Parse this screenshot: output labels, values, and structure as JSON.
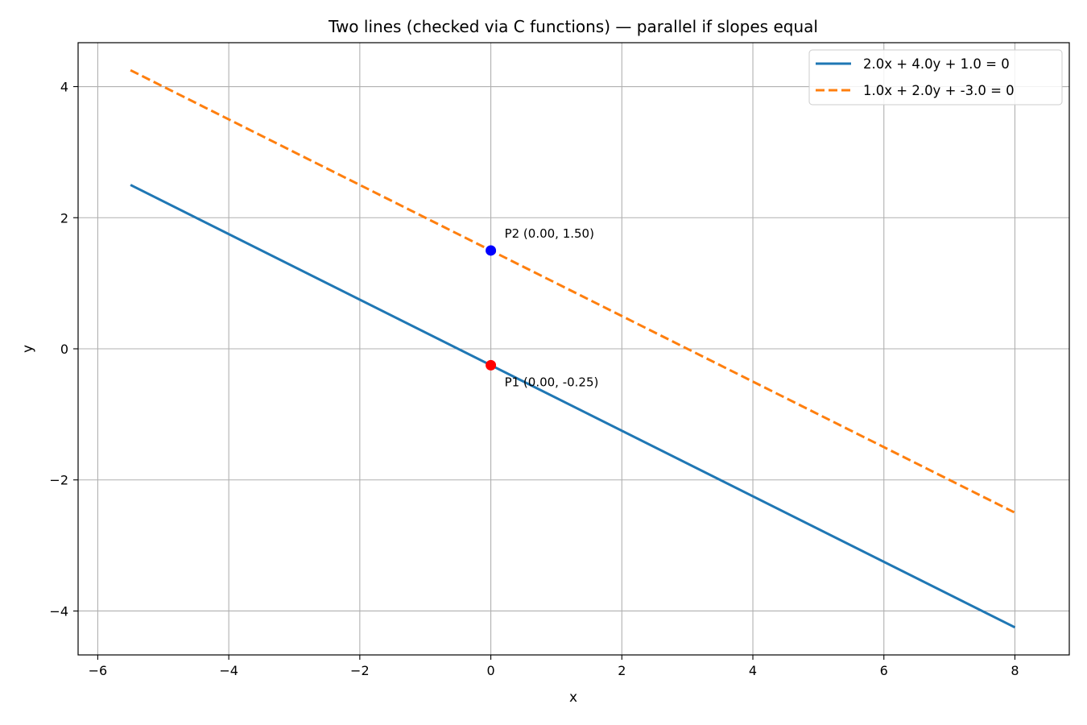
{
  "chart_data": {
    "type": "line",
    "title": "Two lines (checked via C functions) — parallel if slopes equal",
    "xlabel": "x",
    "ylabel": "y",
    "xlim": [
      -6.3,
      8.83
    ],
    "ylim": [
      -4.67,
      4.67
    ],
    "grid": true,
    "legend_position": "top-right",
    "x_ticks": [
      -6,
      -4,
      -2,
      0,
      2,
      4,
      6,
      8
    ],
    "x_tick_labels": [
      "−6",
      "−4",
      "−2",
      "0",
      "2",
      "4",
      "6",
      "8"
    ],
    "y_ticks": [
      -4,
      -2,
      0,
      2,
      4
    ],
    "y_tick_labels": [
      "−4",
      "−2",
      "0",
      "2",
      "4"
    ],
    "series": [
      {
        "name": "2.0x + 4.0y + 1.0 = 0",
        "color": "#1f77b4",
        "style": "solid",
        "x": [
          -5.5,
          8.0
        ],
        "y": [
          2.5,
          -4.25
        ]
      },
      {
        "name": "1.0x + 2.0y + -3.0 = 0",
        "color": "#ff7f0e",
        "style": "dashed",
        "x": [
          -5.5,
          8.0
        ],
        "y": [
          4.25,
          -2.5
        ]
      }
    ],
    "points": [
      {
        "label": "P1 (0.00, -0.25)",
        "x": 0.0,
        "y": -0.25,
        "color": "#ff0000"
      },
      {
        "label": "P2 (0.00, 1.50)",
        "x": 0.0,
        "y": 1.5,
        "color": "#0000ff"
      }
    ]
  }
}
